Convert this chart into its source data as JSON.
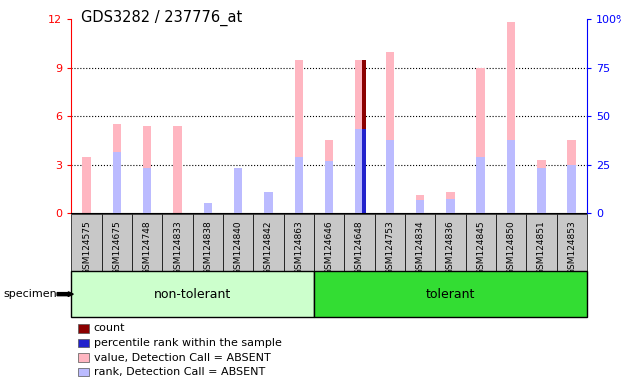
{
  "title": "GDS3282 / 237776_at",
  "samples": [
    "GSM124575",
    "GSM124675",
    "GSM124748",
    "GSM124833",
    "GSM124838",
    "GSM124840",
    "GSM124842",
    "GSM124863",
    "GSM124646",
    "GSM124648",
    "GSM124753",
    "GSM124834",
    "GSM124836",
    "GSM124845",
    "GSM124850",
    "GSM124851",
    "GSM124853"
  ],
  "non_tolerant_count": 8,
  "tolerant_count": 9,
  "pink_values": [
    3.5,
    5.5,
    5.4,
    5.4,
    0.2,
    2.8,
    0.5,
    9.5,
    4.5,
    9.5,
    10.0,
    1.1,
    1.3,
    9.0,
    11.8,
    3.3,
    4.5
  ],
  "blue_rank_values": [
    0.0,
    3.8,
    2.8,
    0.0,
    0.6,
    2.8,
    1.3,
    3.5,
    3.2,
    5.2,
    4.5,
    0.8,
    0.9,
    3.5,
    4.5,
    2.8,
    3.0
  ],
  "red_count_values": [
    0,
    0,
    0,
    0,
    0,
    0,
    0,
    0,
    0,
    9.5,
    0,
    0,
    0,
    0,
    0,
    0,
    0
  ],
  "dark_blue_values": [
    0,
    0,
    0,
    0,
    0,
    0,
    0,
    0,
    0,
    5.2,
    0,
    0,
    0,
    0,
    0,
    0,
    0
  ],
  "ylim_left": [
    0,
    12
  ],
  "ylim_right": [
    0,
    100
  ],
  "yticks_left": [
    0,
    3,
    6,
    9,
    12
  ],
  "ytick_labels_left": [
    "0",
    "3",
    "6",
    "9",
    "12"
  ],
  "yticks_right": [
    0,
    25,
    50,
    75,
    100
  ],
  "ytick_labels_right": [
    "0",
    "25",
    "50",
    "75",
    "100%"
  ],
  "pink_color": "#FFB6C1",
  "light_blue_color": "#BBBBFF",
  "dark_red_color": "#8B0000",
  "dark_blue_color": "#2222CC",
  "nt_color": "#CCFFCC",
  "t_color": "#33DD33",
  "gray_color": "#C8C8C8",
  "legend_items": [
    {
      "color": "#8B0000",
      "label": "count"
    },
    {
      "color": "#2222CC",
      "label": "percentile rank within the sample"
    },
    {
      "color": "#FFB6C1",
      "label": "value, Detection Call = ABSENT"
    },
    {
      "color": "#BBBBFF",
      "label": "rank, Detection Call = ABSENT"
    }
  ]
}
